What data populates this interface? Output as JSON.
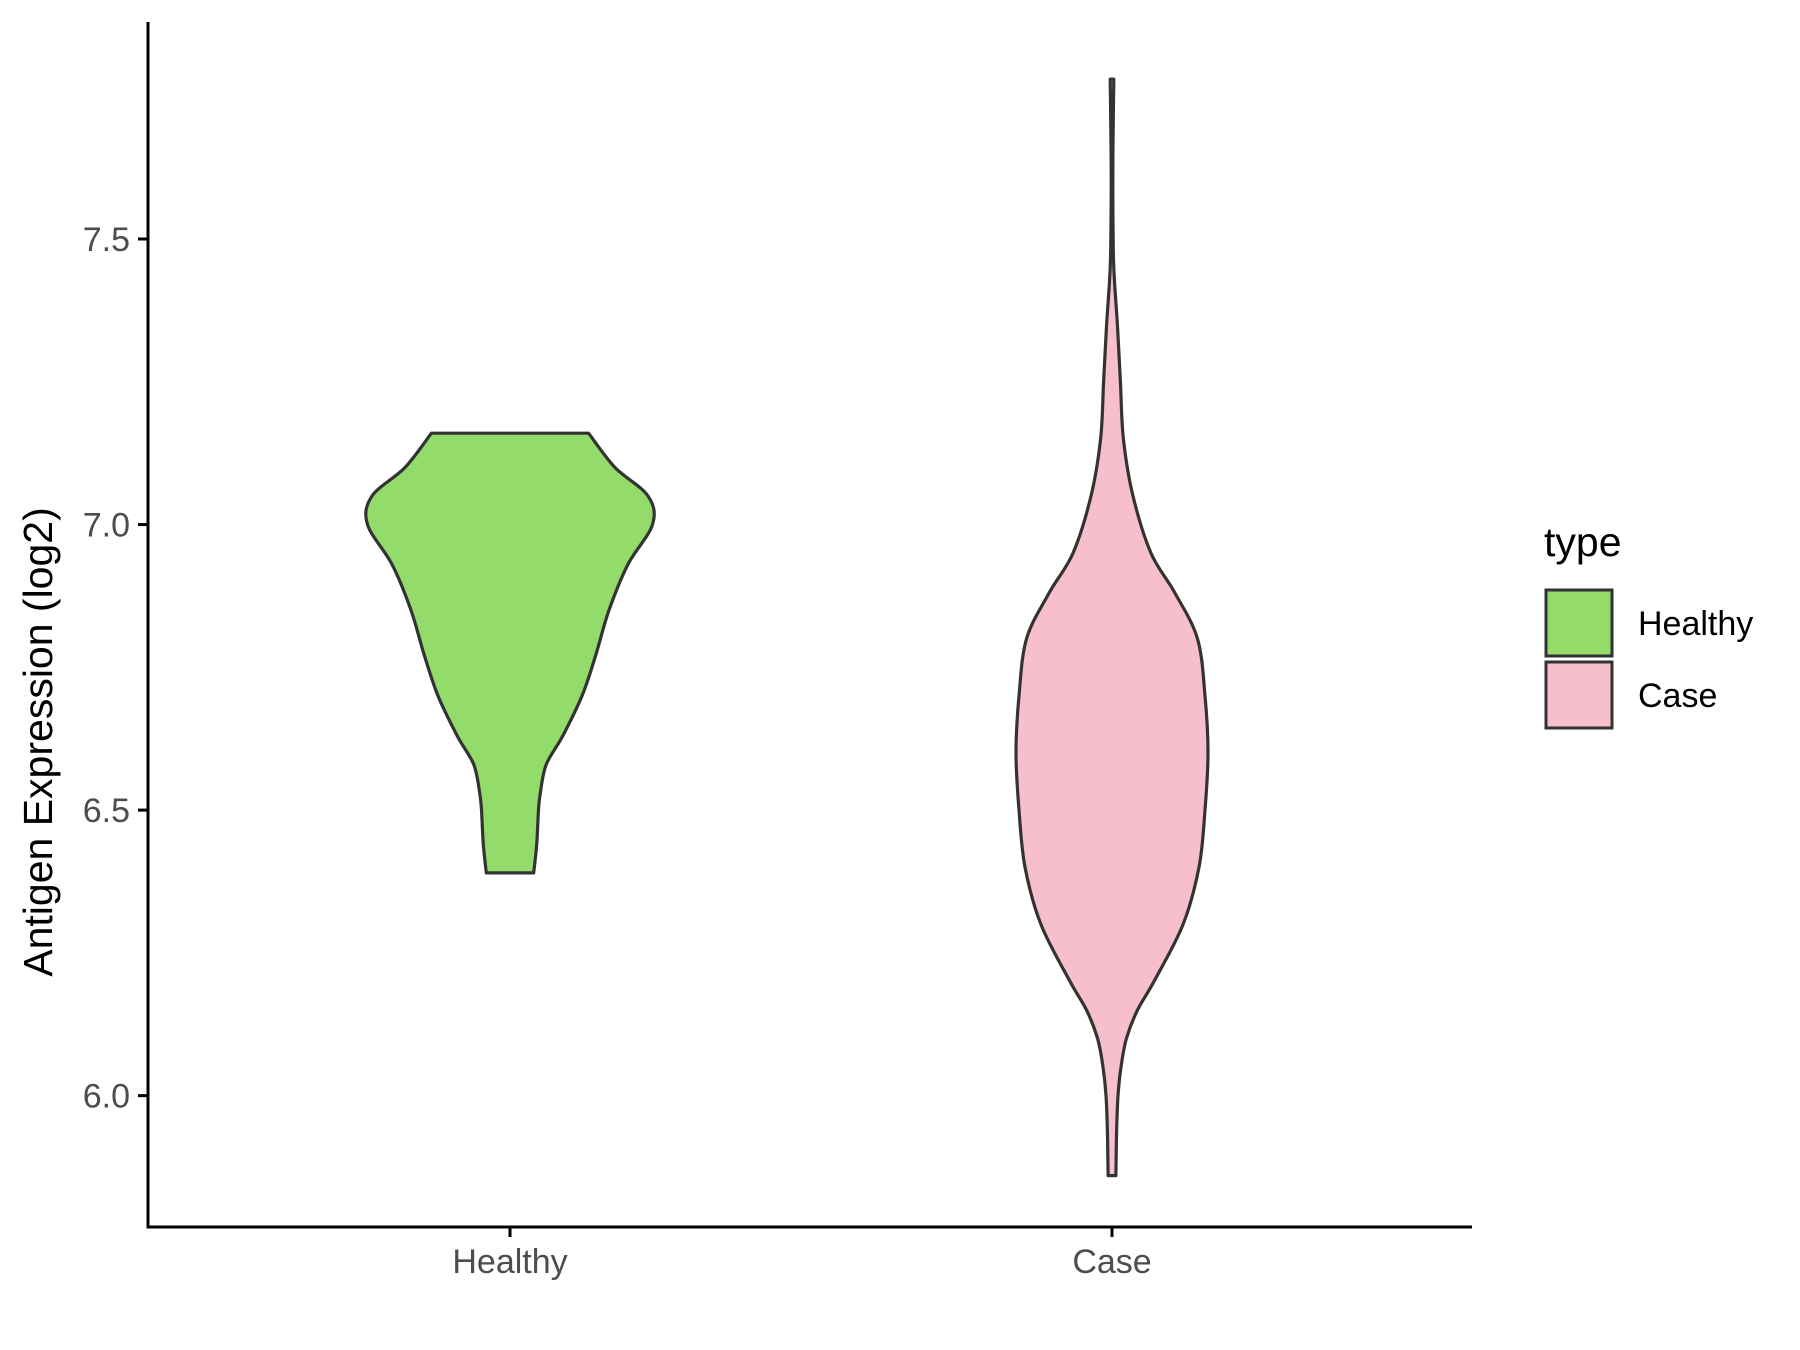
{
  "chart_data": {
    "type": "violin",
    "title": "",
    "xlabel": "",
    "ylabel": "Antigen Expression (log2)",
    "categories": [
      "Healthy",
      "Case"
    ],
    "ylim": [
      5.77,
      7.88
    ],
    "yticks": [
      "6.0",
      "6.5",
      "7.0",
      "7.5"
    ],
    "series": [
      {
        "name": "Healthy",
        "color": "#93dc6b",
        "range": [
          6.39,
          7.16
        ],
        "density": [
          [
            6.39,
            0.079
          ],
          [
            6.44,
            0.089
          ],
          [
            6.5,
            0.095
          ],
          [
            6.53,
            0.101
          ],
          [
            6.58,
            0.121
          ],
          [
            6.63,
            0.176
          ],
          [
            6.7,
            0.24
          ],
          [
            6.77,
            0.285
          ],
          [
            6.85,
            0.33
          ],
          [
            6.93,
            0.393
          ],
          [
            7.0,
            0.475
          ],
          [
            7.05,
            0.46
          ],
          [
            7.1,
            0.35
          ],
          [
            7.16,
            0.262
          ]
        ]
      },
      {
        "name": "Case",
        "color": "#f7bfcb",
        "range": [
          5.86,
          7.78
        ],
        "density": [
          [
            5.86,
            0.013
          ],
          [
            5.93,
            0.015
          ],
          [
            6.0,
            0.02
          ],
          [
            6.05,
            0.03
          ],
          [
            6.1,
            0.048
          ],
          [
            6.15,
            0.085
          ],
          [
            6.2,
            0.14
          ],
          [
            6.3,
            0.237
          ],
          [
            6.4,
            0.29
          ],
          [
            6.5,
            0.31
          ],
          [
            6.6,
            0.32
          ],
          [
            6.7,
            0.31
          ],
          [
            6.8,
            0.285
          ],
          [
            6.88,
            0.21
          ],
          [
            6.95,
            0.13
          ],
          [
            7.05,
            0.07
          ],
          [
            7.15,
            0.038
          ],
          [
            7.25,
            0.028
          ],
          [
            7.35,
            0.018
          ],
          [
            7.45,
            0.006
          ],
          [
            7.55,
            0.003
          ],
          [
            7.65,
            0.003
          ],
          [
            7.78,
            0.006
          ]
        ]
      }
    ],
    "legend": {
      "title": "type",
      "position": "right",
      "entries": [
        "Healthy",
        "Case"
      ]
    },
    "grid": false
  },
  "colors": {
    "outline": "#333333",
    "axis": "#000000",
    "tick_text": "#4d4d4d"
  }
}
